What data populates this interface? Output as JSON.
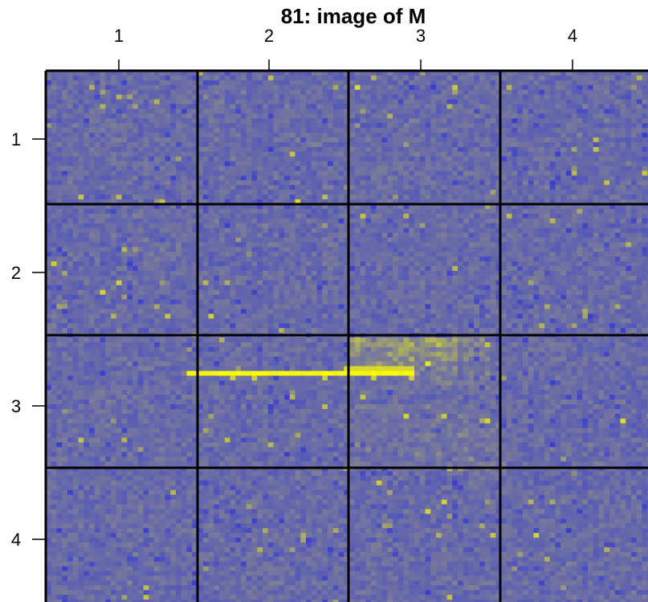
{
  "chart_data": {
    "type": "heatmap",
    "title": "81: image of M",
    "xlabel": "",
    "ylabel": "",
    "x_ticks": [
      "1",
      "2",
      "3",
      "4"
    ],
    "y_ticks": [
      "1",
      "2",
      "3",
      "4"
    ],
    "block_grid": {
      "rows": 4,
      "cols": 4
    },
    "cells_per_block": 28,
    "colors": {
      "low": "#3a3fcf",
      "mid": "#7d7e96",
      "high": "#ffff00",
      "grid_line": "#000000",
      "background": "#ffffff"
    },
    "features": [
      {
        "description": "bright yellow horizontal streak",
        "row_block": 3,
        "from_col_block": 1.95,
        "to_col_block": 3.2
      },
      {
        "description": "yellow-green diffuse area",
        "row_block": 3,
        "col_block": 3
      }
    ]
  }
}
